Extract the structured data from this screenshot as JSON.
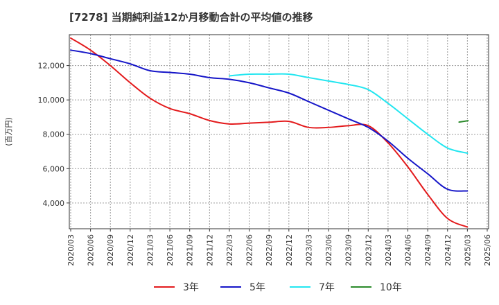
{
  "chart_data": {
    "type": "line",
    "title": "[7278]  当期純利益12か月移動合計の平均値の推移",
    "ylabel": "(百万円)",
    "xlabel": "",
    "x": [
      "2020/03",
      "2020/06",
      "2020/09",
      "2020/12",
      "2021/03",
      "2021/06",
      "2021/09",
      "2021/12",
      "2022/03",
      "2022/06",
      "2022/09",
      "2022/12",
      "2023/03",
      "2023/06",
      "2023/09",
      "2023/12",
      "2024/03",
      "2024/06",
      "2024/09",
      "2024/12",
      "2025/03",
      "2025/06"
    ],
    "yticks": [
      4000,
      6000,
      8000,
      10000,
      12000
    ],
    "ytick_labels": [
      "4,000",
      "6,000",
      "8,000",
      "10,000",
      "12,000"
    ],
    "ylim": [
      2500,
      13800
    ],
    "grid": true,
    "legend_position": "bottom",
    "series": [
      {
        "name": "3年",
        "color": "#e31a1c",
        "values": [
          13600,
          12900,
          12000,
          11000,
          10100,
          9500,
          9200,
          8800,
          8600,
          8650,
          8700,
          8750,
          8400,
          8400,
          8500,
          8500,
          7500,
          6100,
          4500,
          3100,
          2600,
          null
        ]
      },
      {
        "name": "5年",
        "color": "#1515c8",
        "values": [
          12900,
          12700,
          12400,
          12100,
          11700,
          11600,
          11500,
          11300,
          11200,
          11000,
          10700,
          10400,
          9900,
          9400,
          8900,
          8400,
          7600,
          6600,
          5700,
          4800,
          4700,
          null
        ]
      },
      {
        "name": "7年",
        "color": "#22e6f0",
        "values": [
          null,
          null,
          null,
          null,
          null,
          null,
          null,
          null,
          11400,
          11500,
          11500,
          11500,
          11300,
          11100,
          10900,
          10600,
          9800,
          8900,
          8000,
          7200,
          6900,
          null
        ]
      },
      {
        "name": "10年",
        "color": "#2a8a2a",
        "values": [
          null,
          null,
          null,
          null,
          null,
          null,
          null,
          null,
          null,
          null,
          null,
          null,
          null,
          null,
          null,
          null,
          null,
          null,
          null,
          null,
          8750,
          null
        ]
      }
    ]
  }
}
